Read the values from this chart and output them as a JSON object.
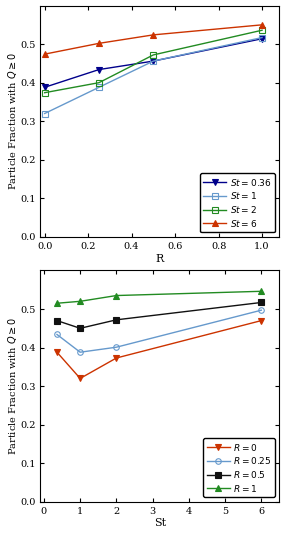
{
  "top": {
    "xlabel": "R",
    "ylabel": "Particle Fraction with $Q \\geq 0$",
    "xlim": [
      -0.02,
      1.08
    ],
    "ylim": [
      0,
      0.6
    ],
    "xticks": [
      0,
      0.2,
      0.4,
      0.6,
      0.8,
      1.0
    ],
    "yticks": [
      0,
      0.1,
      0.2,
      0.3,
      0.4,
      0.5
    ],
    "series": [
      {
        "label": "$St = 0.36$",
        "x": [
          0,
          0.25,
          0.5,
          1.0
        ],
        "y": [
          0.388,
          0.434,
          0.456,
          0.514
        ],
        "color": "#00008B",
        "marker": "v",
        "markersize": 4
      },
      {
        "label": "$St = 1$",
        "x": [
          0,
          0.25,
          0.5,
          1.0
        ],
        "y": [
          0.32,
          0.388,
          0.456,
          0.517
        ],
        "color": "#6699CC",
        "marker": "s",
        "markersize": 4,
        "markerfill": "none"
      },
      {
        "label": "$St = 2$",
        "x": [
          0,
          0.25,
          0.5,
          1.0
        ],
        "y": [
          0.374,
          0.4,
          0.472,
          0.536
        ],
        "color": "#228B22",
        "marker": "s",
        "markersize": 4,
        "markerfill": "none"
      },
      {
        "label": "$St = 6$",
        "x": [
          0,
          0.25,
          0.5,
          1.0
        ],
        "y": [
          0.474,
          0.502,
          0.524,
          0.55
        ],
        "color": "#CC3300",
        "marker": "^",
        "markersize": 4
      }
    ]
  },
  "bottom": {
    "xlabel": "St",
    "ylabel": "Particle Fraction with $Q \\geq 0$",
    "xlim": [
      -0.1,
      6.5
    ],
    "ylim": [
      0,
      0.6
    ],
    "xticks": [
      0,
      1,
      2,
      3,
      4,
      5,
      6
    ],
    "yticks": [
      0,
      0.1,
      0.2,
      0.3,
      0.4,
      0.5
    ],
    "series": [
      {
        "label": "$R=0$",
        "x": [
          0.36,
          1,
          2,
          6
        ],
        "y": [
          0.388,
          0.32,
          0.373,
          0.47
        ],
        "color": "#CC3300",
        "marker": "v",
        "markersize": 4
      },
      {
        "label": "$R=0.25$",
        "x": [
          0.36,
          1,
          2,
          6
        ],
        "y": [
          0.434,
          0.388,
          0.401,
          0.497
        ],
        "color": "#6699CC",
        "marker": "o",
        "markersize": 4,
        "markerfill": "none"
      },
      {
        "label": "$R=0.5$",
        "x": [
          0.36,
          1,
          2,
          6
        ],
        "y": [
          0.47,
          0.45,
          0.472,
          0.517
        ],
        "color": "#111111",
        "marker": "s",
        "markersize": 4
      },
      {
        "label": "$R=1$",
        "x": [
          0.36,
          1,
          2,
          6
        ],
        "y": [
          0.515,
          0.52,
          0.535,
          0.546
        ],
        "color": "#228B22",
        "marker": "^",
        "markersize": 4
      }
    ]
  }
}
